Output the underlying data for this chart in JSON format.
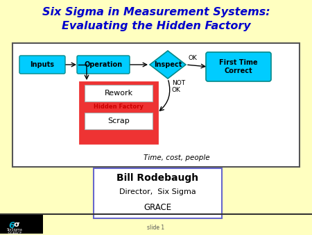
{
  "title_line1": "Six Sigma in Measurement Systems:",
  "title_line2": "Evaluating the Hidden Factory",
  "title_color": "#0000CC",
  "bg_color": "#FFFFC0",
  "inputs_label": "Inputs",
  "operation_label": "Operation",
  "inspect_label": "Inspect",
  "ftc_label": "First Time\nCorrect",
  "rework_label": "Rework",
  "scrap_label": "Scrap",
  "hidden_factory_label": "Hidden Factory",
  "ok_label": "OK",
  "not_ok_label": "NOT\nOK",
  "time_cost_label": "Time, cost, people",
  "bill_line1": "Bill Rodebaugh",
  "bill_line2": "Director,  Six Sigma",
  "bill_line3": "GRACE",
  "slide_label": "slide 1",
  "cyan_color": "#00CCFF",
  "red_color": "#EE3333",
  "bill_border_color": "#6666CC"
}
